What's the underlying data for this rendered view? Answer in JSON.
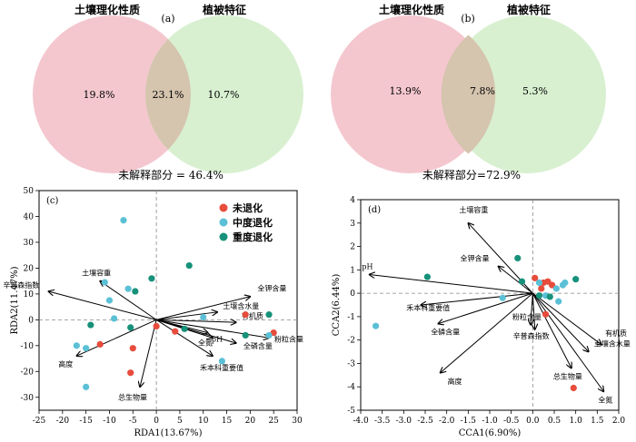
{
  "venn_panels": [
    {
      "panel_label": "(a)",
      "left_title": "土壤理化性质",
      "right_title": "植被特征",
      "left_only": "19.8%",
      "overlap": "23.1%",
      "right_only": "10.7%",
      "unexplained": "未解释部分 = 46.4%"
    },
    {
      "panel_label": "(b)",
      "left_title": "土壤理化性质",
      "right_title": "植被特征",
      "left_only": "13.9%",
      "overlap": "7.8%",
      "right_only": "5.3%",
      "unexplained": "未解释部分=72.9%"
    }
  ],
  "colors": {
    "venn_left": "#f4c7cf",
    "venn_right": "#d8f0d0",
    "venn_overlap": "#d5c4ae",
    "undegraded": "#e74c3c",
    "moderate": "#5bc0d6",
    "severe": "#17917a"
  },
  "chart_data": [
    {
      "type": "scatter",
      "panel_label": "(c)",
      "xlabel": "RDA1(13.67%)",
      "ylabel": "RDA2(11.47%)",
      "xlim": [
        -25,
        30
      ],
      "ylim": [
        -35,
        50
      ],
      "xticks": [
        -25,
        -20,
        -15,
        -10,
        -5,
        0,
        5,
        10,
        15,
        20,
        25,
        30
      ],
      "yticks": [
        -30,
        -20,
        -10,
        0,
        10,
        20,
        30,
        40,
        50
      ],
      "legend": {
        "position": "top-right",
        "entries": [
          {
            "key": "undegraded",
            "label": "未退化"
          },
          {
            "key": "moderate",
            "label": "中度退化"
          },
          {
            "key": "severe",
            "label": "重度退化"
          }
        ]
      },
      "series": [
        {
          "key": "undegraded",
          "points": [
            [
              -12,
              -9.5
            ],
            [
              -5,
              -11
            ],
            [
              -5.5,
              -20.5
            ],
            [
              0,
              -2.5
            ],
            [
              4,
              -4.5
            ],
            [
              19,
              2
            ],
            [
              25,
              -5
            ]
          ]
        },
        {
          "key": "moderate",
          "points": [
            [
              -7,
              38.5
            ],
            [
              -11,
              14.5
            ],
            [
              -6,
              12
            ],
            [
              -10,
              7.5
            ],
            [
              -9,
              0.5
            ],
            [
              -15,
              -26
            ],
            [
              -15,
              -11
            ],
            [
              -17,
              -10
            ],
            [
              10,
              1
            ],
            [
              14,
              -16
            ],
            [
              24,
              -6
            ]
          ]
        },
        {
          "key": "severe",
          "points": [
            [
              -1,
              16
            ],
            [
              7,
              21
            ],
            [
              -4.5,
              11
            ],
            [
              -14,
              -2
            ],
            [
              -5.5,
              -3
            ],
            [
              6,
              -3.5
            ],
            [
              19,
              -6
            ],
            [
              24,
              2
            ]
          ]
        }
      ],
      "vectors": [
        {
          "label": "土壤容重",
          "x": -12,
          "y": 15
        },
        {
          "label": "辛普森指数",
          "x": -23,
          "y": 11
        },
        {
          "label": "高度",
          "x": -17,
          "y": -14
        },
        {
          "label": "总生物量",
          "x": -3.5,
          "y": -26
        },
        {
          "label": "全钾含量",
          "x": 20,
          "y": 9
        },
        {
          "label": "土壤含水量",
          "x": 13,
          "y": 3
        },
        {
          "label": "有机质",
          "x": 17,
          "y": -1
        },
        {
          "label": "粉粒含量",
          "x": 24,
          "y": -7
        },
        {
          "label": "全磷含量",
          "x": 17,
          "y": -9
        },
        {
          "label": "全氮",
          "x": 12,
          "y": -7
        },
        {
          "label": "pH",
          "x": 11,
          "y": -5
        },
        {
          "label": "禾本科重要值",
          "x": 12,
          "y": -14
        }
      ]
    },
    {
      "type": "scatter",
      "panel_label": "(d)",
      "xlabel": "CCA1(6.90%)",
      "ylabel": "CCA2(6.44%)",
      "xlim": [
        -4.0,
        2.0
      ],
      "ylim": [
        -5,
        4
      ],
      "xticks": [
        -4.0,
        -3.5,
        -3.0,
        -2.5,
        -2.0,
        -1.5,
        -1.0,
        -0.5,
        0.0,
        0.5,
        1.0,
        1.5,
        2.0
      ],
      "yticks": [
        -5,
        -4,
        -3,
        -2,
        -1,
        0,
        1,
        2,
        3,
        4
      ],
      "series": [
        {
          "key": "undegraded",
          "points": [
            [
              0.05,
              0.65
            ],
            [
              0.25,
              0.45
            ],
            [
              0.35,
              0.5
            ],
            [
              0.45,
              0.35
            ],
            [
              0.2,
              0.2
            ],
            [
              0.3,
              -0.9
            ],
            [
              0.95,
              -4.05
            ]
          ]
        },
        {
          "key": "moderate",
          "points": [
            [
              -3.65,
              -1.4
            ],
            [
              -0.7,
              -0.2
            ],
            [
              0.15,
              0.45
            ],
            [
              0.55,
              0.2
            ],
            [
              0.7,
              0.35
            ],
            [
              0.75,
              0.45
            ],
            [
              0.3,
              -0.1
            ],
            [
              0.6,
              -0.35
            ]
          ]
        },
        {
          "key": "severe",
          "points": [
            [
              -0.35,
              1.5
            ],
            [
              -2.45,
              0.7
            ],
            [
              -0.25,
              0.5
            ],
            [
              0.4,
              -0.15
            ],
            [
              1.0,
              0.6
            ],
            [
              0.15,
              -0.1
            ]
          ]
        }
      ],
      "vectors": [
        {
          "label": "土壤容重",
          "x": -1.5,
          "y": 3.0
        },
        {
          "label": "pH",
          "x": -3.8,
          "y": 0.8
        },
        {
          "label": "全钾含量",
          "x": -0.8,
          "y": 1.15
        },
        {
          "label": "禾本科重要值",
          "x": -2.6,
          "y": -0.5
        },
        {
          "label": "全磷含量",
          "x": -2.2,
          "y": -1.3
        },
        {
          "label": "高度",
          "x": -2.15,
          "y": -3.4
        },
        {
          "label": "粉粒含量",
          "x": -0.05,
          "y": -1.35
        },
        {
          "label": "辛普森指数",
          "x": 0.05,
          "y": -1.55
        },
        {
          "label": "有机质",
          "x": 1.6,
          "y": -2.2
        },
        {
          "label": "土壤含水量",
          "x": 1.3,
          "y": -2.5
        },
        {
          "label": "总生物量",
          "x": 0.9,
          "y": -3.2
        },
        {
          "label": "全氮",
          "x": 1.65,
          "y": -4.2
        }
      ]
    }
  ]
}
